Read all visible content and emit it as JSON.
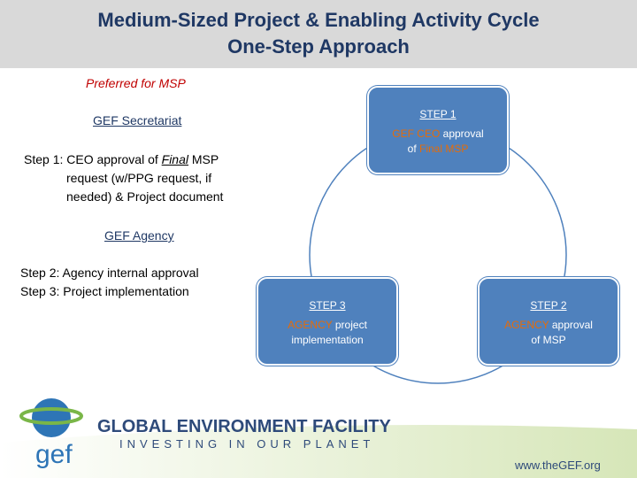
{
  "header": {
    "title": [
      "Medium-Sized Project & Enabling Activity Cycle",
      "One-Step Approach"
    ]
  },
  "left": {
    "preferred": "Preferred for MSP",
    "secretariat": {
      "heading": "GEF Secretariat",
      "lines": [
        [
          "Step 1: CEO approval of ",
          "Final",
          " MSP"
        ],
        "request (w/PPG request, if",
        "needed) & Project document"
      ]
    },
    "agency": {
      "heading": "GEF Agency",
      "lines": [
        "Step 2: Agency internal approval",
        "Step 3: Project implementation"
      ]
    }
  },
  "nodes": [
    {
      "label": "STEP 1",
      "lines": [
        [
          "GEF CEO",
          " approval"
        ],
        [
          "of ",
          "Final MSP"
        ]
      ]
    },
    {
      "label": "STEP 2",
      "lines": [
        [
          "AGENCY",
          " approval"
        ],
        [
          "of MSP",
          ""
        ]
      ]
    },
    {
      "label": "STEP 3",
      "lines": [
        [
          "AGENCY",
          " project"
        ],
        [
          "implementation",
          ""
        ]
      ]
    }
  ],
  "footer": {
    "logo": "gef",
    "name": "GLOBAL ENVIRONMENT FACILITY",
    "tagline": "INVESTING IN OUR PLANET",
    "url": "www.theGEF.org"
  }
}
